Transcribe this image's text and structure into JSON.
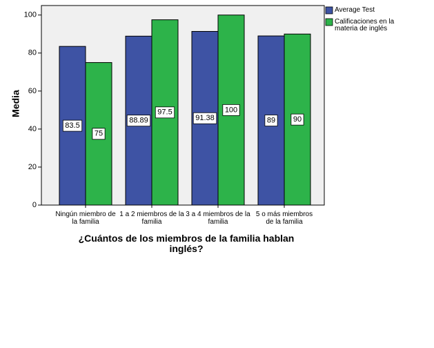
{
  "chart_data": {
    "type": "bar",
    "x_label": "¿Cuántos de los miembros de la familia hablan inglés?",
    "y_label": "Media",
    "categories": [
      "Ningún miembro de la familia",
      "1 a 2 miembros de la familia",
      "3 a 4 miembros de la familia",
      "5 o más miembros de la familia"
    ],
    "series": [
      {
        "name": "Average Test",
        "color": "#3e53a4",
        "values": [
          83.5,
          88.89,
          91.38,
          89
        ]
      },
      {
        "name": "Calificaciones en la materia de inglés",
        "color": "#2db34a",
        "values": [
          75,
          97.5,
          100,
          90
        ]
      }
    ],
    "ylim": [
      0,
      105
    ],
    "yticks": [
      0,
      20,
      40,
      60,
      80,
      100
    ],
    "grid": false,
    "legend": "right"
  }
}
